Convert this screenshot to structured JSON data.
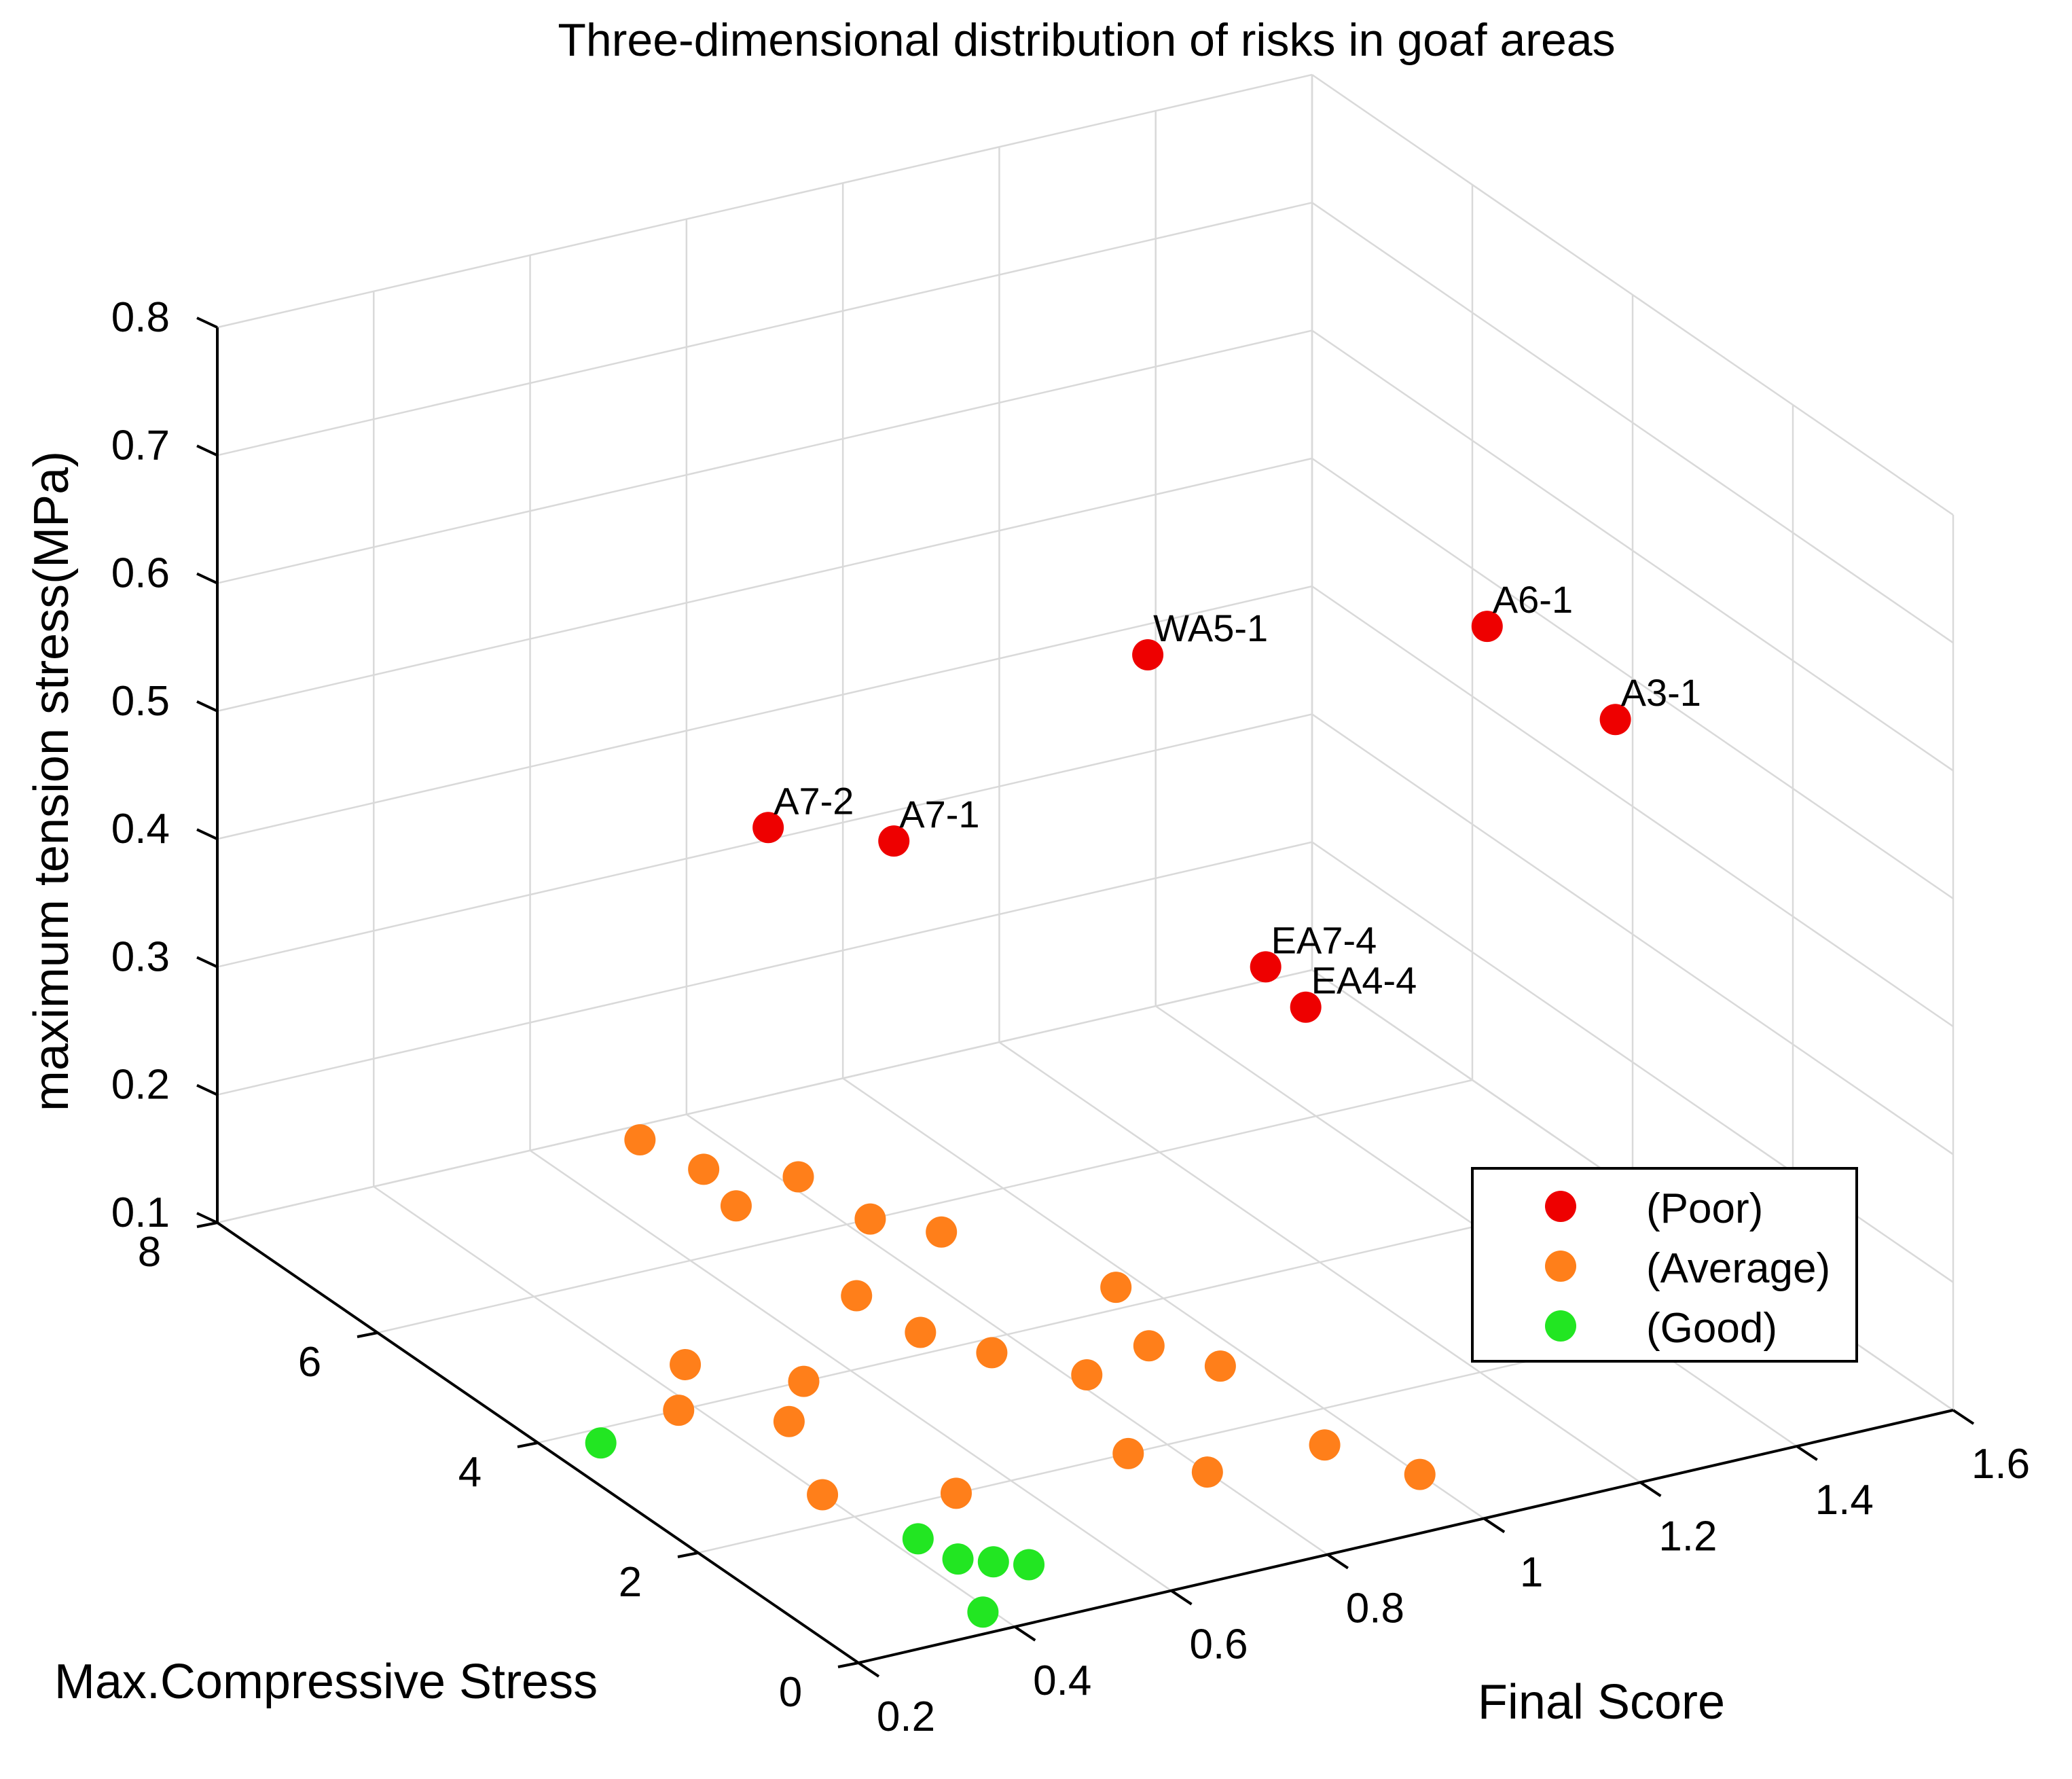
{
  "chart_data": {
    "type": "scatter",
    "dimensions": 3,
    "title": "Three-dimensional distribution of risks in goaf areas",
    "xlabel": "Final Score",
    "ylabel": "Max.Compressive  Stress",
    "zlabel": "maximum tension stress(MPa)",
    "xlim": [
      0.2,
      1.6
    ],
    "ylim": [
      0,
      8
    ],
    "zlim": [
      0.1,
      0.8
    ],
    "x_ticks": [
      "0.2",
      "0.4",
      "0.6",
      "0.8",
      "1",
      "1.2",
      "1.4",
      "1.6"
    ],
    "y_ticks": [
      "0",
      "2",
      "4",
      "6",
      "8"
    ],
    "z_ticks": [
      "0.1",
      "0.2",
      "0.3",
      "0.4",
      "0.5",
      "0.6",
      "0.7",
      "0.8"
    ],
    "grid": true,
    "legend_position": "right",
    "legend": [
      {
        "label": "(Poor)",
        "color": "#ee0000"
      },
      {
        "label": "(Average)",
        "color": "#ff7f1a"
      },
      {
        "label": "(Good)",
        "color": "#22e622"
      }
    ],
    "series": [
      {
        "name": "(Poor)",
        "color": "#ee0000",
        "points": [
          {
            "x": 1.25,
            "y": 2.4,
            "z": 0.659,
            "label": "A6-1"
          },
          {
            "x": 0.98,
            "y": 4.0,
            "z": 0.606,
            "label": "WA5-1"
          },
          {
            "x": 1.25,
            "y": 0.8,
            "z": 0.655,
            "label": "A3-1"
          },
          {
            "x": 1.1,
            "y": 3.7,
            "z": 0.358,
            "label": "EA7-4"
          },
          {
            "x": 1.1,
            "y": 3.2,
            "z": 0.348,
            "label": "EA4-4"
          },
          {
            "x": 0.72,
            "y": 6.2,
            "z": 0.413,
            "label": "A7-2"
          },
          {
            "x": 0.85,
            "y": 5.9,
            "z": 0.397,
            "label": "A7-1"
          }
        ]
      },
      {
        "name": "(Average)",
        "color": "#ff7f1a",
        "points": [
          {
            "x": 0.72,
            "y": 7.8,
            "z": 0.1
          },
          {
            "x": 0.74,
            "y": 7.2,
            "z": 0.1
          },
          {
            "x": 0.72,
            "y": 6.6,
            "z": 0.1
          },
          {
            "x": 0.82,
            "y": 6.8,
            "z": 0.1
          },
          {
            "x": 0.83,
            "y": 6.0,
            "z": 0.1
          },
          {
            "x": 0.88,
            "y": 5.6,
            "z": 0.1
          },
          {
            "x": 0.71,
            "y": 5.0,
            "z": 0.1
          },
          {
            "x": 0.72,
            "y": 4.3,
            "z": 0.1
          },
          {
            "x": 0.76,
            "y": 3.8,
            "z": 0.1
          },
          {
            "x": 0.82,
            "y": 3.2,
            "z": 0.1
          },
          {
            "x": 0.97,
            "y": 4.3,
            "z": 0.1
          },
          {
            "x": 0.92,
            "y": 3.4,
            "z": 0.1
          },
          {
            "x": 0.96,
            "y": 2.9,
            "z": 0.1
          },
          {
            "x": 0.75,
            "y": 2.0,
            "z": 0.1
          },
          {
            "x": 0.8,
            "y": 1.5,
            "z": 0.1
          },
          {
            "x": 0.95,
            "y": 1.5,
            "z": 0.1
          },
          {
            "x": 1.0,
            "y": 0.8,
            "z": 0.1
          },
          {
            "x": 0.45,
            "y": 4.6,
            "z": 0.1
          },
          {
            "x": 0.54,
            "y": 4.0,
            "z": 0.1
          },
          {
            "x": 0.38,
            "y": 4.0,
            "z": 0.1
          },
          {
            "x": 0.47,
            "y": 3.5,
            "z": 0.1
          },
          {
            "x": 0.4,
            "y": 2.4,
            "z": 0.1
          },
          {
            "x": 0.53,
            "y": 2.0,
            "z": 0.1
          }
        ]
      },
      {
        "name": "(Good)",
        "color": "#22e622",
        "points": [
          {
            "x": 0.26,
            "y": 3.8,
            "z": 0.1
          },
          {
            "x": 0.43,
            "y": 1.5,
            "z": 0.1
          },
          {
            "x": 0.44,
            "y": 1.1,
            "z": 0.1
          },
          {
            "x": 0.47,
            "y": 0.95,
            "z": 0.1
          },
          {
            "x": 0.5,
            "y": 0.8,
            "z": 0.1
          },
          {
            "x": 0.39,
            "y": 0.3,
            "z": 0.1
          }
        ]
      }
    ]
  }
}
